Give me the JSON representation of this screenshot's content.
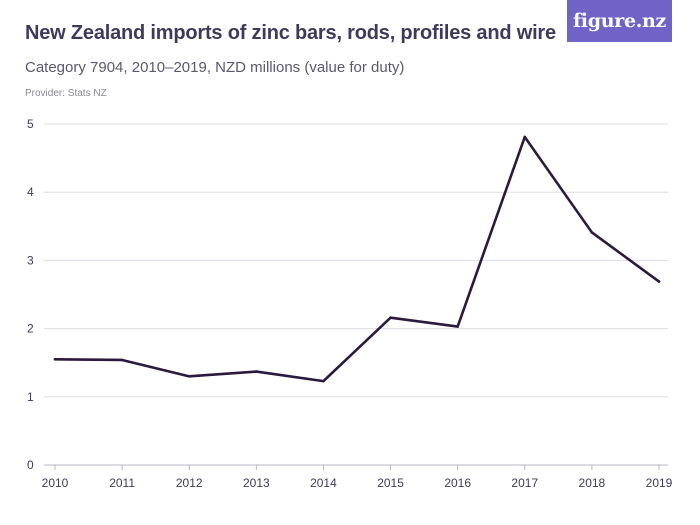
{
  "header": {
    "title": "New Zealand imports of zinc bars, rods, profiles and wire",
    "subtitle": "Category 7904, 2010–2019, NZD millions (value for duty)",
    "provider": "Provider: Stats NZ",
    "logo_text": "figure.nz"
  },
  "colors": {
    "line": "#2b1a3d",
    "grid": "#dcdce3",
    "axis": "#b8b6c6",
    "logo_bg": "#6f63c7"
  },
  "chart_data": {
    "type": "line",
    "x": [
      "2010",
      "2011",
      "2012",
      "2013",
      "2014",
      "2015",
      "2016",
      "2017",
      "2018",
      "2019"
    ],
    "series": [
      {
        "values": [
          1.55,
          1.54,
          1.3,
          1.37,
          1.23,
          2.16,
          2.03,
          4.81,
          3.41,
          2.69
        ]
      }
    ],
    "ylim": [
      0,
      5
    ],
    "yticks": [
      "0",
      "1",
      "2",
      "3",
      "4",
      "5"
    ],
    "grid": true,
    "xlabel": "",
    "ylabel": ""
  }
}
